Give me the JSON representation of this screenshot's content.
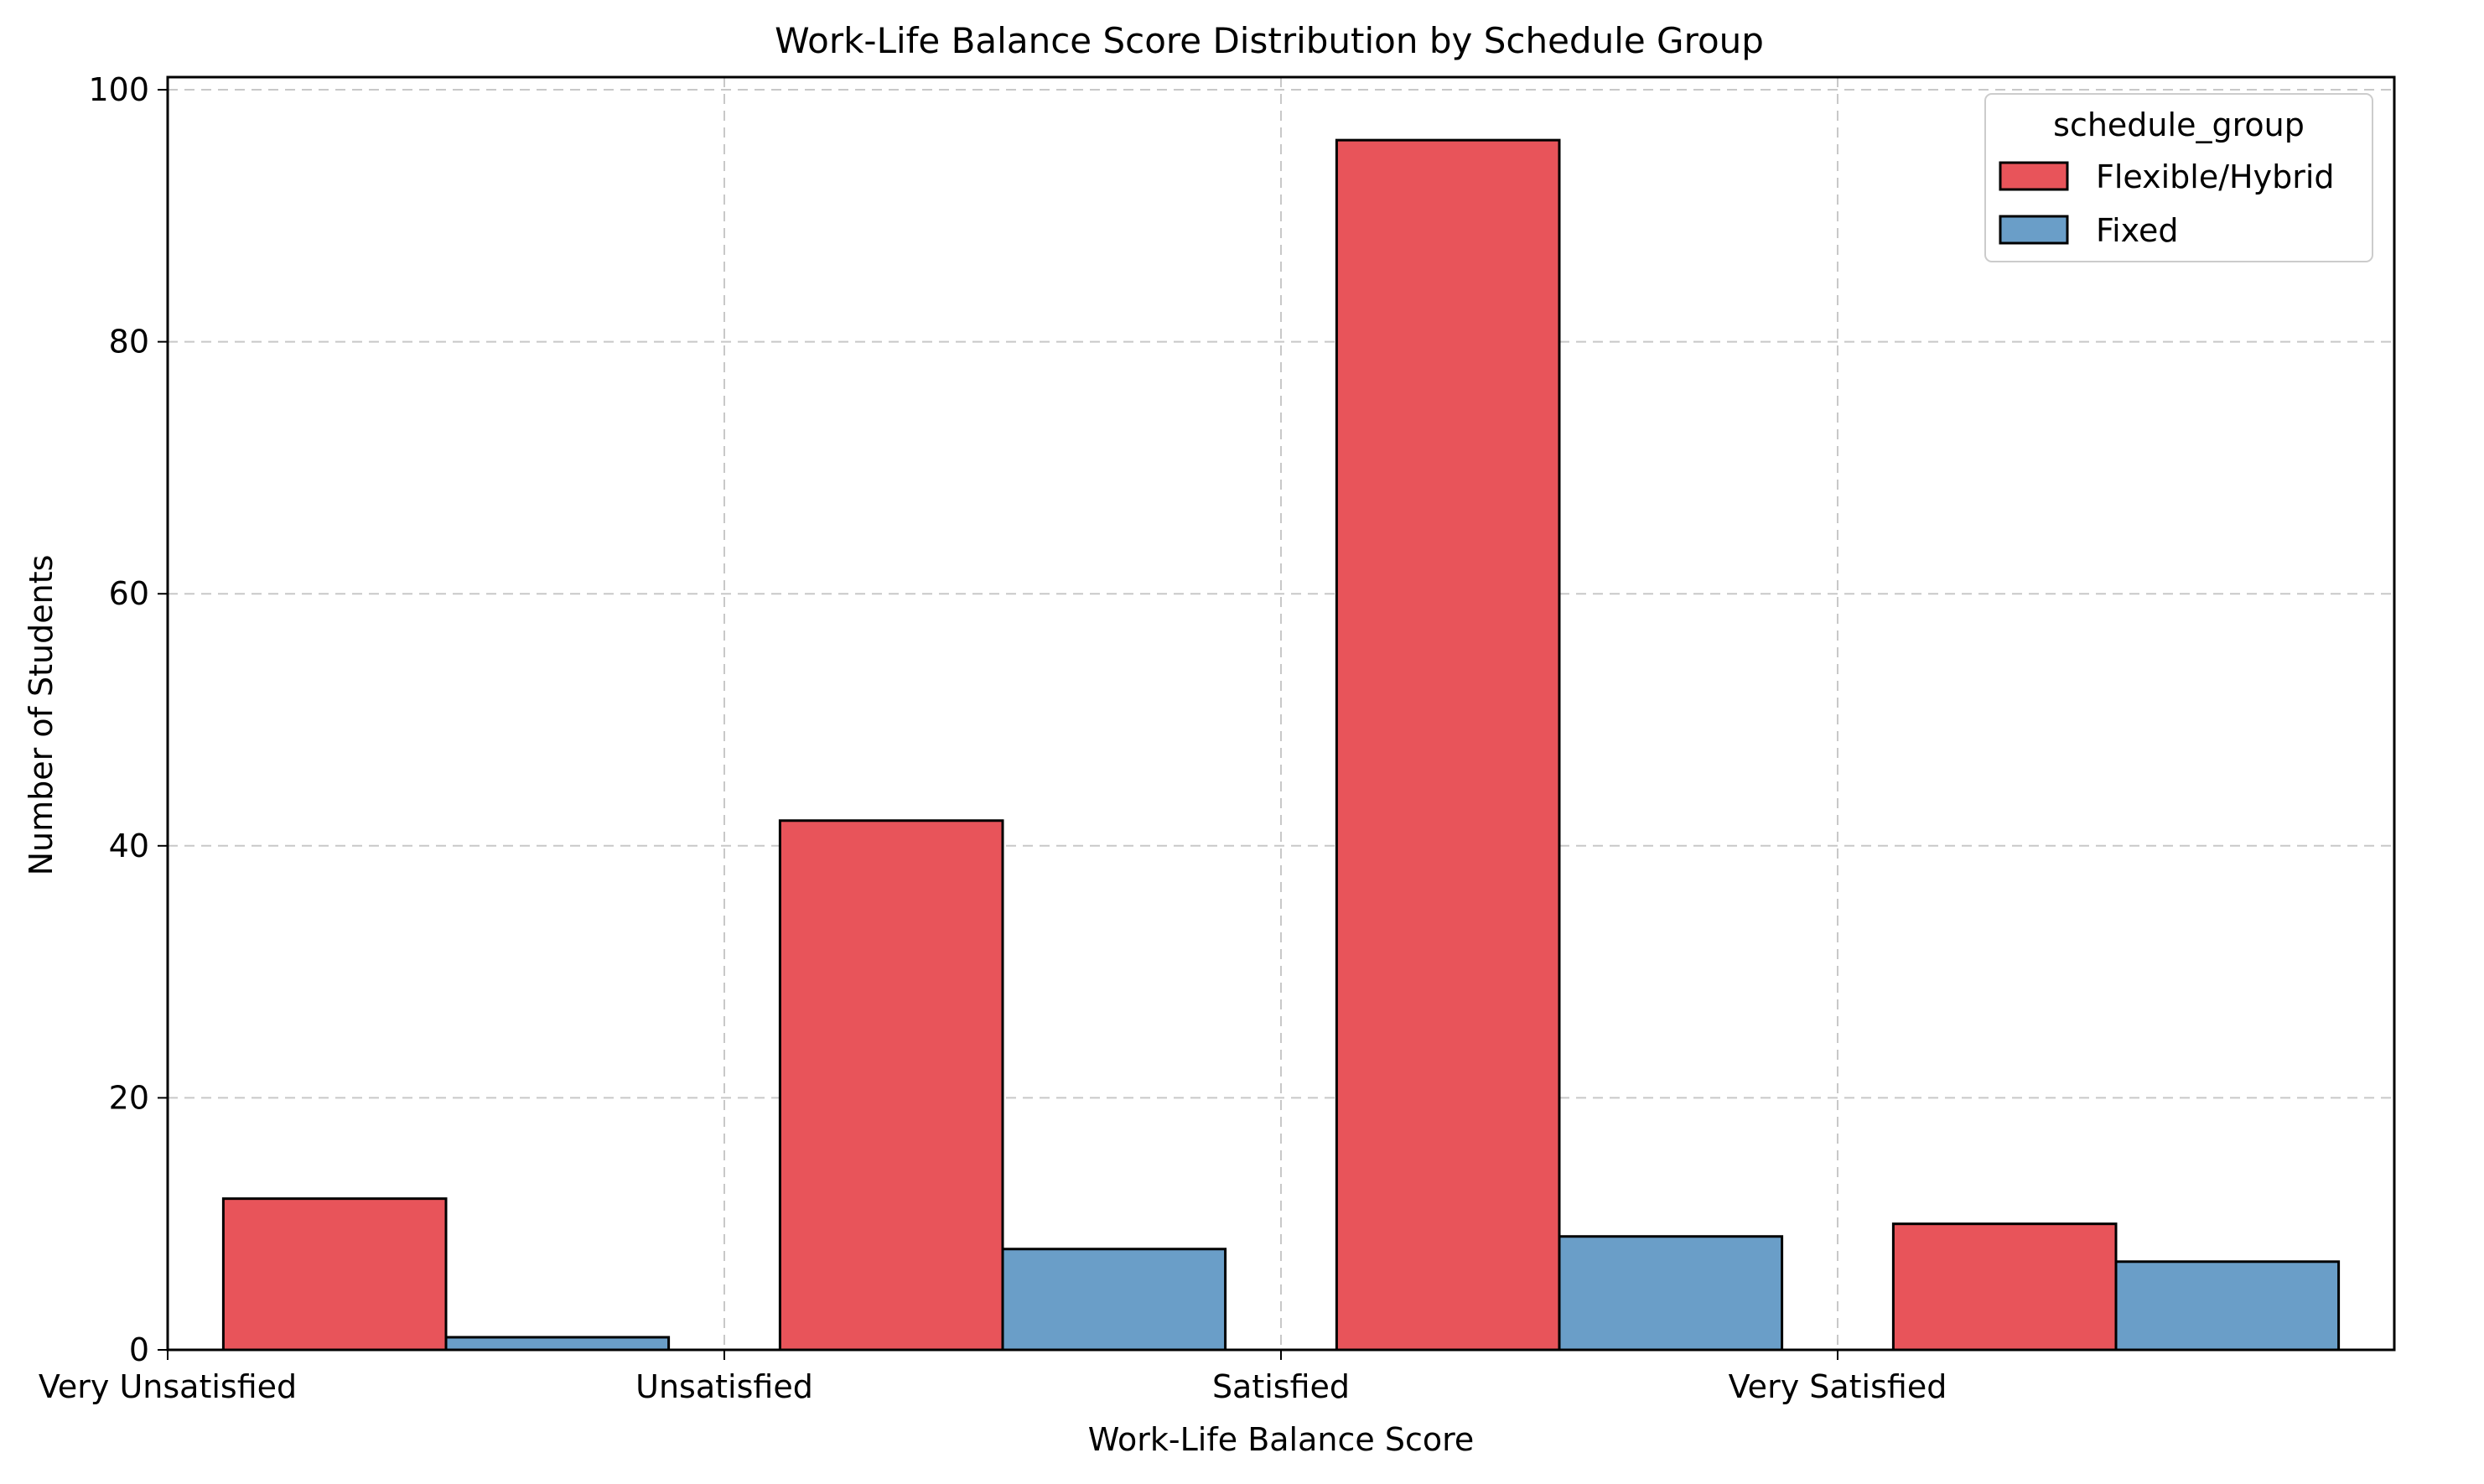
{
  "chart_data": {
    "type": "bar",
    "title": "Work-Life Balance Score Distribution by Schedule Group",
    "xlabel": "Work-Life Balance Score",
    "ylabel": "Number of Students",
    "categories": [
      "Very Unsatisfied",
      "Unsatisfied",
      "Satisfied",
      "Very Satisfied"
    ],
    "y_ticks": [
      0,
      20,
      40,
      60,
      80,
      100
    ],
    "ylim": [
      0,
      101
    ],
    "grid": true,
    "legend": {
      "title": "schedule_group",
      "placement": "top-right"
    },
    "series": [
      {
        "name": "Flexible/Hybrid",
        "color": "#e8545a",
        "values": [
          12,
          42,
          96,
          10
        ]
      },
      {
        "name": "Fixed",
        "color": "#6a9ec8",
        "values": [
          1,
          8,
          9,
          7
        ]
      }
    ]
  }
}
